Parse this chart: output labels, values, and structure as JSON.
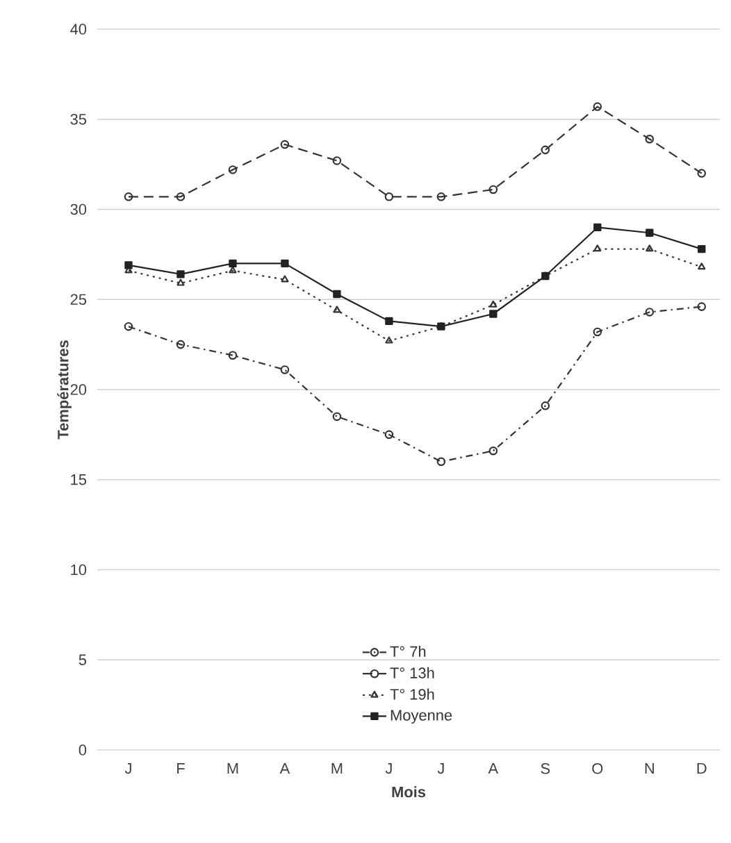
{
  "chart_data": {
    "type": "line",
    "xlabel": "Mois",
    "ylabel": "Températures",
    "categories": [
      "J",
      "F",
      "M",
      "A",
      "M",
      "J",
      "J",
      "A",
      "S",
      "O",
      "N",
      "D"
    ],
    "series": [
      {
        "name": "T° 7h",
        "color": "#333333",
        "marker": "circle",
        "line_style": "dashdot",
        "values": [
          23.5,
          22.5,
          21.9,
          21.1,
          18.5,
          17.5,
          16.0,
          16.6,
          19.1,
          23.2,
          24.3,
          24.6
        ]
      },
      {
        "name": "T° 13h",
        "color": "#333333",
        "marker": "circle",
        "line_style": "dashed",
        "values": [
          30.7,
          30.7,
          32.2,
          33.6,
          32.7,
          30.7,
          30.7,
          31.1,
          33.3,
          35.7,
          33.9,
          32.0
        ]
      },
      {
        "name": "T° 19h",
        "color": "#333333",
        "marker": "triangle",
        "line_style": "dotted",
        "values": [
          26.6,
          25.9,
          26.6,
          26.1,
          24.4,
          22.7,
          23.5,
          24.7,
          26.3,
          27.8,
          27.8,
          26.8
        ]
      },
      {
        "name": "Moyenne",
        "color": "#222222",
        "marker": "square",
        "line_style": "solid",
        "values": [
          26.9,
          26.4,
          27.0,
          27.0,
          25.3,
          23.8,
          23.5,
          24.2,
          26.3,
          29.0,
          28.7,
          27.8
        ]
      }
    ],
    "ylim": [
      0,
      40
    ],
    "yticks": [
      0,
      5,
      10,
      15,
      20,
      25,
      30,
      35,
      40
    ],
    "grid": "y",
    "legend": "bottom"
  }
}
